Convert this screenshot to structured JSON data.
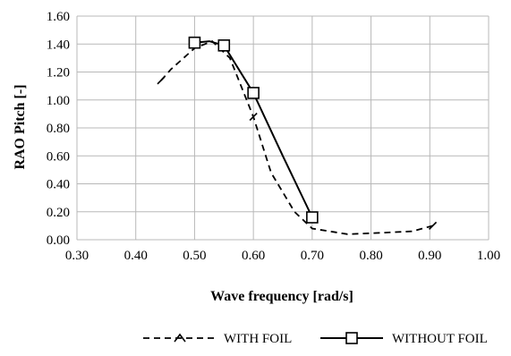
{
  "chart_data": {
    "type": "line",
    "xlabel": "Wave frequency [rad/s]",
    "ylabel": "RAO Pitch [-]",
    "xlim": [
      0.3,
      1.0
    ],
    "ylim": [
      0.0,
      1.6
    ],
    "x_ticks": [
      "0.30",
      "0.40",
      "0.50",
      "0.60",
      "0.70",
      "0.80",
      "0.90",
      "1.00"
    ],
    "y_ticks": [
      "0.00",
      "0.20",
      "0.40",
      "0.60",
      "0.80",
      "1.00",
      "1.20",
      "1.40",
      "1.60"
    ],
    "grid": true,
    "legend_position": "bottom",
    "series": [
      {
        "name": "WITH FOIL",
        "line_style": "dashed",
        "marker": "diamond-broken",
        "color": "#000000",
        "x": [
          0.443,
          0.46,
          0.5,
          0.53,
          0.56,
          0.6,
          0.63,
          0.67,
          0.7,
          0.76,
          0.82,
          0.87,
          0.905
        ],
        "y": [
          1.14,
          1.22,
          1.37,
          1.42,
          1.3,
          0.88,
          0.48,
          0.2,
          0.08,
          0.04,
          0.05,
          0.06,
          0.1
        ]
      },
      {
        "name": "WITHOUT FOIL",
        "line_style": "solid",
        "marker": "square",
        "color": "#000000",
        "x": [
          0.5,
          0.525,
          0.55,
          0.6,
          0.65,
          0.7
        ],
        "y": [
          1.41,
          1.42,
          1.39,
          1.05,
          0.6,
          0.16
        ],
        "marker_x": [
          0.5,
          0.55,
          0.6,
          0.7
        ],
        "marker_y": [
          1.41,
          1.39,
          1.05,
          0.16
        ]
      }
    ]
  }
}
